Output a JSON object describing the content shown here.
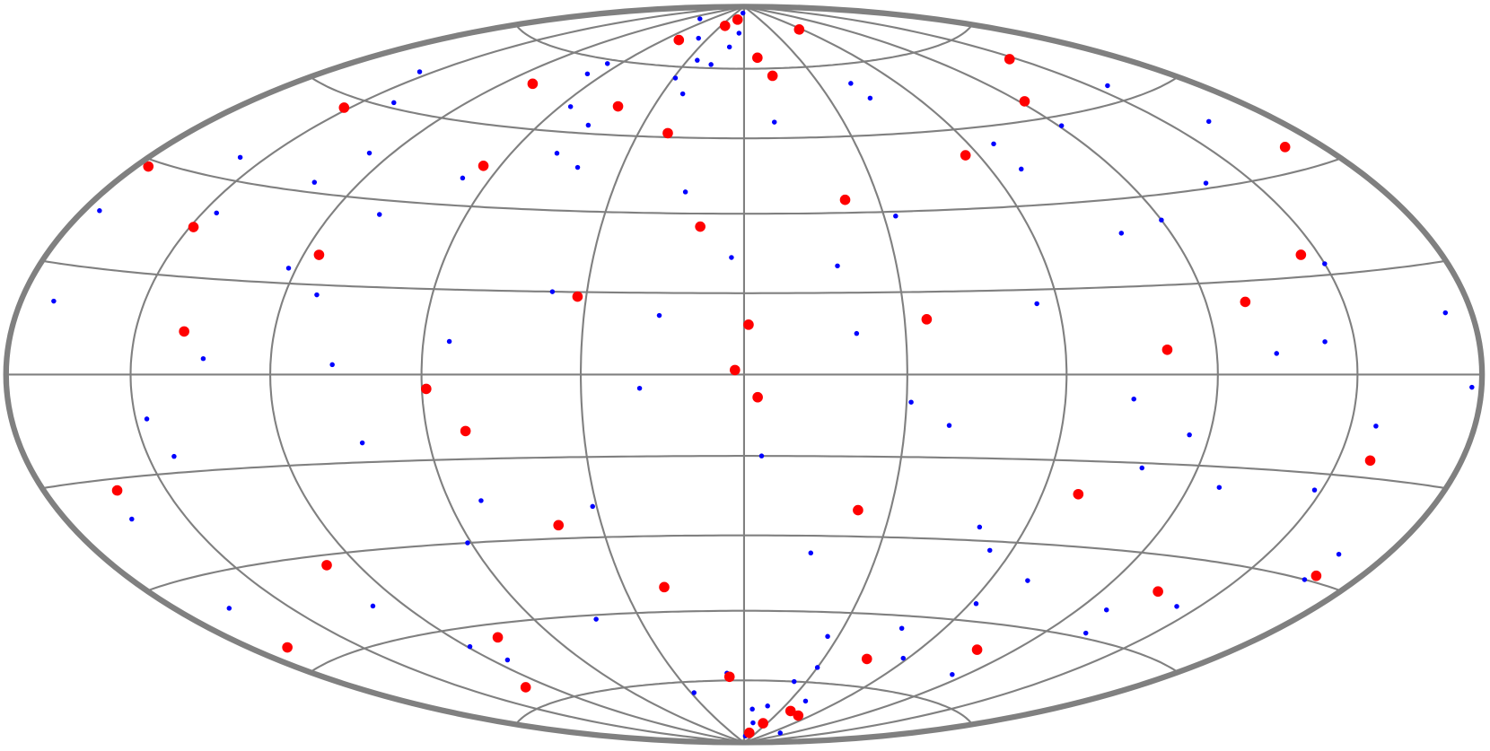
{
  "chart_data": {
    "type": "scatter",
    "projection": "hammer",
    "grid": true,
    "grid_color": "#808080",
    "frame_color": "#808080",
    "xlim": [
      -180,
      180
    ],
    "ylim": [
      -90,
      90
    ],
    "xticks": [
      -180,
      -144,
      -108,
      -72,
      -36,
      0,
      36,
      72,
      108,
      144,
      180
    ],
    "yticks": [
      -90,
      -72,
      -54,
      -36,
      -18,
      0,
      18,
      36,
      54,
      72,
      90
    ],
    "series": [
      {
        "color": "#0000ff",
        "marker_size": 2.6,
        "x": [
          -170,
          -160,
          -152,
          -141,
          -133,
          -125,
          -118,
          -110,
          -102,
          -95,
          -88,
          -80,
          -73,
          -66,
          -58,
          -51,
          -44,
          -37,
          -30,
          -23,
          -16,
          -9,
          -3,
          4,
          11,
          18,
          25,
          32,
          39,
          46,
          53,
          60,
          67,
          74,
          81,
          88,
          95,
          102,
          109,
          116,
          123,
          130,
          137,
          144,
          151,
          158,
          165,
          172,
          -175,
          -163,
          -149,
          -137,
          -121,
          -107,
          -93,
          -79,
          -64,
          -49,
          -34,
          -19,
          -6,
          8,
          22,
          37,
          51,
          66,
          80,
          94,
          108,
          122,
          136,
          150,
          164,
          177,
          -12,
          14,
          -27,
          29,
          -45,
          48,
          -68,
          70,
          -90,
          92,
          -115,
          117,
          -140,
          142,
          -5,
          6,
          -20,
          21,
          -35,
          36,
          -55,
          57,
          -80,
          83,
          -100,
          103
        ],
        "y": [
          12,
          -25,
          40,
          -8,
          55,
          3,
          -47,
          21,
          -62,
          33,
          -14,
          68,
          -36,
          7,
          49,
          -55,
          18,
          -29,
          74,
          -3,
          41,
          -70,
          26,
          -18,
          58,
          -40,
          9,
          -60,
          35,
          -11,
          63,
          -33,
          15,
          -50,
          44,
          -5,
          29,
          -66,
          52,
          -22,
          4,
          37,
          -45,
          20,
          -9,
          47,
          -31,
          10,
          27,
          -42,
          61,
          -15,
          38,
          -58,
          2,
          71,
          -27,
          46,
          -75,
          13,
          82,
          -80,
          24,
          -6,
          67,
          -38,
          50,
          -19,
          31,
          -53,
          6,
          57,
          -36,
          -2,
          78,
          -84,
          65,
          -72,
          80,
          -77,
          60,
          -64,
          85,
          -86,
          45,
          -48,
          30,
          -21,
          88,
          -88,
          73,
          -79,
          69,
          -68,
          56,
          -57,
          42,
          -44,
          16,
          -12
        ]
      },
      {
        "color": "#ff0000",
        "marker_size": 5.5,
        "x": [
          -176,
          -158,
          -146,
          -131,
          -117,
          -104,
          -92,
          -77,
          -63,
          -50,
          -38,
          -24,
          -11,
          3,
          15,
          28,
          41,
          55,
          68,
          81,
          96,
          110,
          125,
          139,
          153,
          168,
          -168,
          -143,
          -119,
          -96,
          -71,
          -47,
          -26,
          -8,
          9,
          27,
          46,
          69,
          94,
          118,
          141,
          166,
          -60,
          60,
          -30,
          30,
          -15,
          16,
          -2,
          1
        ],
        "y": [
          35,
          -20,
          52,
          8,
          -38,
          24,
          -57,
          45,
          -12,
          61,
          17,
          -48,
          33,
          -5,
          70,
          -30,
          12,
          -65,
          48,
          -25,
          5,
          58,
          -43,
          22,
          -15,
          40,
          -50,
          27,
          -68,
          64,
          -3,
          -33,
          55,
          -71,
          75,
          39,
          -80,
          82,
          -60,
          14,
          66,
          -35,
          79,
          -81,
          84,
          -84,
          86,
          -87,
          1,
          11
        ]
      }
    ]
  }
}
